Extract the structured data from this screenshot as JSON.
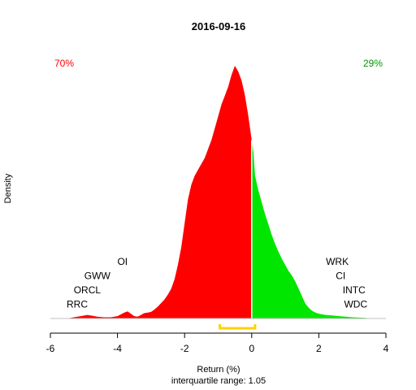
{
  "chart_data": {
    "type": "area",
    "title": "2016-09-16",
    "xlabel": "Return (%)",
    "ylabel": "Density",
    "subtitle": "interquartile range: 1.05",
    "xlim": [
      -6,
      4
    ],
    "ylim": [
      0,
      0.44
    ],
    "xticks": [
      -6,
      -4,
      -2,
      0,
      2,
      4
    ],
    "neg_pct": "70%",
    "pos_pct": "29%",
    "colors": {
      "neg": "#ff0000",
      "pos": "#00e600",
      "neg_text": "#ff0000",
      "pos_text": "#009900",
      "iqr": "#ffd200"
    },
    "iqr": [
      -0.95,
      0.1
    ],
    "density": {
      "x": [
        -5.5,
        -5.3,
        -5.1,
        -4.9,
        -4.8,
        -4.6,
        -4.4,
        -4.2,
        -4.0,
        -3.8,
        -3.7,
        -3.6,
        -3.5,
        -3.4,
        -3.3,
        -3.2,
        -3.1,
        -3.0,
        -2.9,
        -2.8,
        -2.7,
        -2.6,
        -2.5,
        -2.4,
        -2.3,
        -2.2,
        -2.1,
        -2.0,
        -1.9,
        -1.8,
        -1.7,
        -1.6,
        -1.5,
        -1.4,
        -1.3,
        -1.2,
        -1.1,
        -1.0,
        -0.9,
        -0.8,
        -0.7,
        -0.6,
        -0.5,
        -0.4,
        -0.3,
        -0.2,
        -0.1,
        0.0,
        0.05,
        0.1,
        0.2,
        0.3,
        0.4,
        0.5,
        0.6,
        0.7,
        0.8,
        0.9,
        1.0,
        1.1,
        1.2,
        1.3,
        1.4,
        1.5,
        1.6,
        1.7,
        1.8,
        1.9,
        2.0,
        2.2,
        2.4,
        2.6,
        2.8,
        3.0,
        3.2,
        3.4,
        3.5
      ],
      "y": [
        0.0,
        0.002,
        0.004,
        0.006,
        0.005,
        0.003,
        0.002,
        0.002,
        0.004,
        0.01,
        0.012,
        0.008,
        0.004,
        0.003,
        0.006,
        0.009,
        0.01,
        0.011,
        0.015,
        0.02,
        0.026,
        0.032,
        0.04,
        0.05,
        0.066,
        0.09,
        0.12,
        0.16,
        0.2,
        0.225,
        0.24,
        0.25,
        0.26,
        0.27,
        0.285,
        0.3,
        0.32,
        0.34,
        0.36,
        0.375,
        0.39,
        0.41,
        0.425,
        0.415,
        0.4,
        0.375,
        0.34,
        0.3,
        0.28,
        0.24,
        0.215,
        0.195,
        0.175,
        0.158,
        0.14,
        0.125,
        0.112,
        0.1,
        0.09,
        0.08,
        0.072,
        0.062,
        0.05,
        0.037,
        0.025,
        0.018,
        0.013,
        0.01,
        0.008,
        0.006,
        0.005,
        0.004,
        0.003,
        0.002,
        0.0015,
        0.001,
        0.0
      ]
    },
    "neg_labels": [
      {
        "text": "OI",
        "x": -3.85,
        "row": 1
      },
      {
        "text": "GWW",
        "x": -4.6,
        "row": 2
      },
      {
        "text": "ORCL",
        "x": -4.9,
        "row": 3
      },
      {
        "text": "RRC",
        "x": -5.2,
        "row": 4
      }
    ],
    "pos_labels": [
      {
        "text": "WRK",
        "x": 2.55,
        "row": 1
      },
      {
        "text": "CI",
        "x": 2.65,
        "row": 2
      },
      {
        "text": "INTC",
        "x": 3.05,
        "row": 3
      },
      {
        "text": "WDC",
        "x": 3.1,
        "row": 4
      }
    ]
  }
}
